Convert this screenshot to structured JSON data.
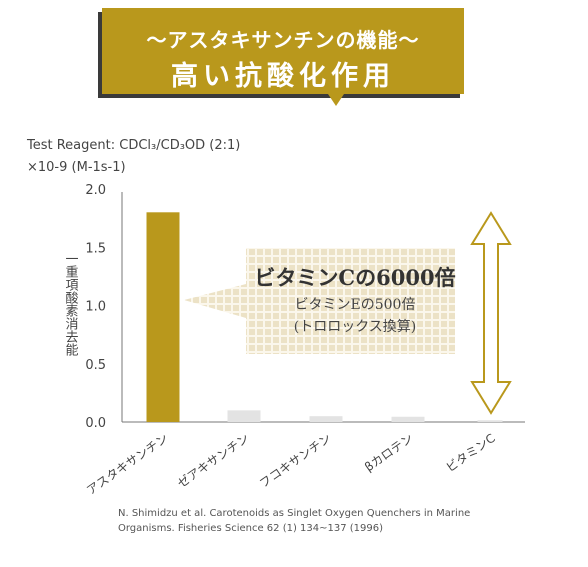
{
  "header": {
    "subtitle": "〜アスタキサンチンの機能〜",
    "title": "高い抗酸化作用"
  },
  "reagent": "Test Reagent: CDCl₃/CD₃OD (2:1)",
  "unit": "×10-9 (M-1s-1)",
  "chart_data": {
    "type": "bar",
    "ylabel": "一重項酸素消去能",
    "ylim": [
      0,
      2.0
    ],
    "yticks": [
      "0.0",
      "0.5",
      "1.0",
      "1.5",
      "2.0"
    ],
    "categories": [
      "アスタキサンチン",
      "ゼアキサンチン",
      "フコキサンチン",
      "βカロテン",
      "ビタミンC"
    ],
    "values": [
      1.8,
      0.1,
      0.05,
      0.045,
      0.015
    ],
    "colors": [
      "#b9981c",
      "#e3e3e3",
      "#e3e3e3",
      "#e3e3e3",
      "#e3e3e3"
    ],
    "grid": false,
    "annotation": {
      "line1": "ビタミンCの6000倍",
      "line2": "ビタミンEの500倍",
      "line3": "(トロロックス換算)",
      "accent": "#b9981c"
    }
  },
  "reference": {
    "line1": "N. Shimidzu et al. Carotenoids as Singlet Oxygen Quenchers in Marine",
    "line2": "Organisms. Fisheries Science 62 (1) 134~137 (1996)"
  }
}
